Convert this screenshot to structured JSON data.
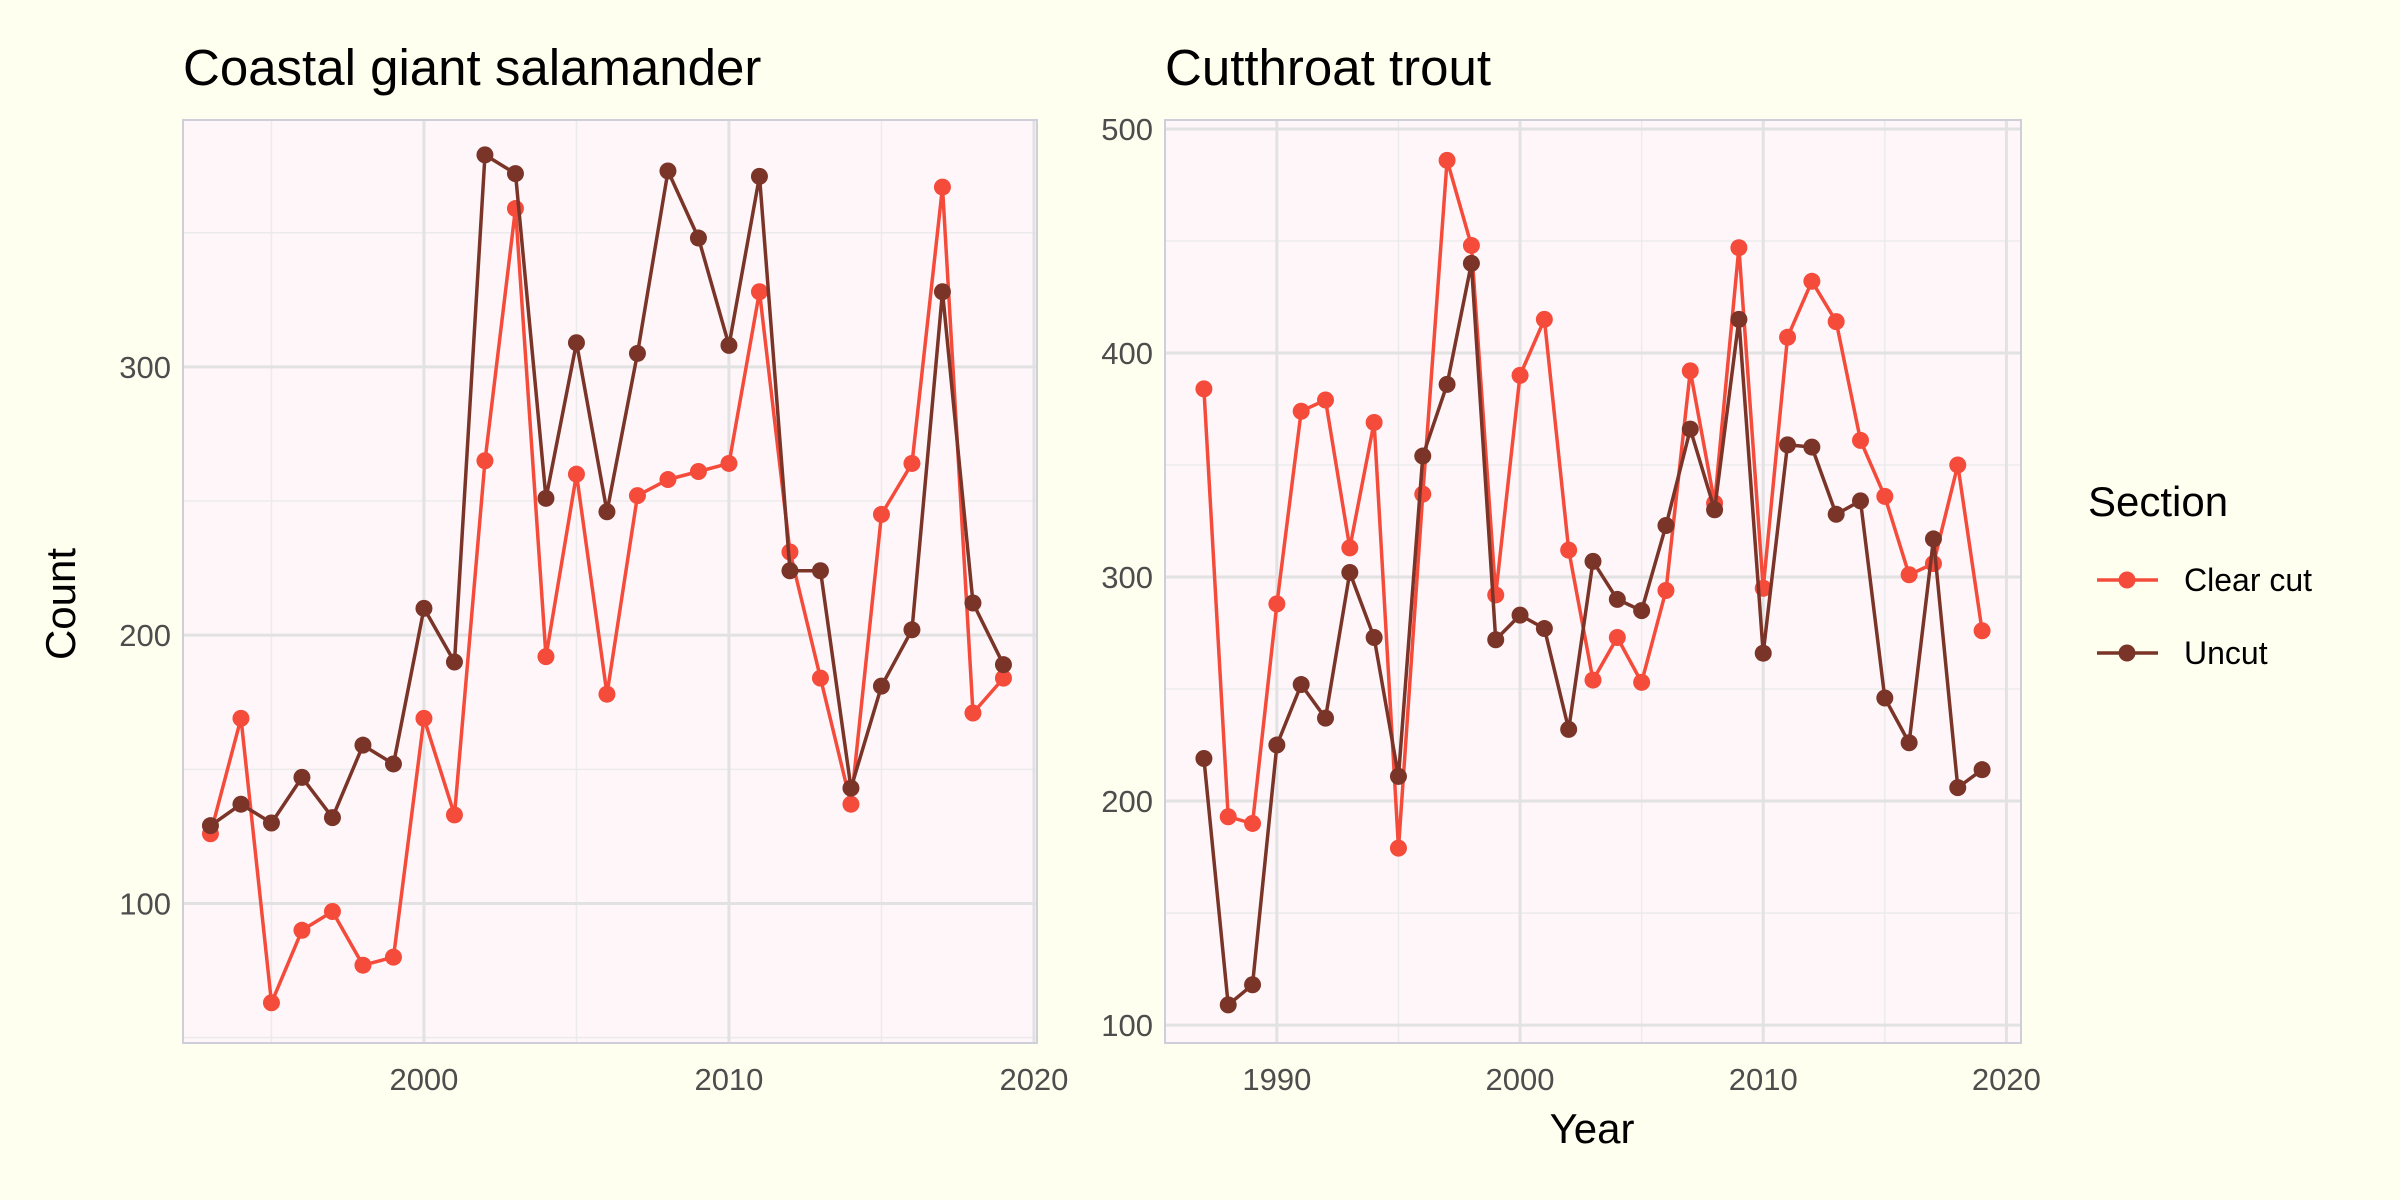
{
  "chart_data": [
    {
      "type": "line",
      "title": "Coastal giant salamander",
      "ylabel": "Count",
      "xlim": [
        1992.1,
        2020.1
      ],
      "ylim": [
        48,
        392
      ],
      "xticks": [
        2000,
        2010,
        2020
      ],
      "yticks": [
        100,
        200,
        300
      ],
      "x": [
        1993,
        1994,
        1995,
        1996,
        1997,
        1998,
        1999,
        2000,
        2001,
        2002,
        2003,
        2004,
        2005,
        2006,
        2007,
        2008,
        2009,
        2010,
        2011,
        2012,
        2013,
        2014,
        2015,
        2016,
        2017,
        2018,
        2019
      ],
      "series": [
        {
          "name": "Clear cut",
          "color": "#f44b3b",
          "values": [
            126,
            169,
            63,
            90,
            97,
            77,
            80,
            169,
            133,
            265,
            359,
            192,
            260,
            178,
            252,
            258,
            261,
            264,
            328,
            231,
            184,
            137,
            245,
            264,
            367,
            171,
            184
          ]
        },
        {
          "name": "Uncut",
          "color": "#7a3428",
          "values": [
            129,
            137,
            130,
            147,
            132,
            159,
            152,
            210,
            190,
            379,
            372,
            251,
            309,
            246,
            305,
            373,
            348,
            308,
            371,
            224,
            224,
            143,
            181,
            202,
            328,
            212,
            189
          ]
        }
      ]
    },
    {
      "type": "line",
      "title": "Cutthroat trout",
      "xlabel": "Year",
      "xlim": [
        1985.4,
        2020.6
      ],
      "ylim": [
        92,
        504
      ],
      "xticks": [
        1990,
        2000,
        2010,
        2020
      ],
      "yticks": [
        100,
        200,
        300,
        400,
        500
      ],
      "x": [
        1987,
        1988,
        1989,
        1990,
        1991,
        1992,
        1993,
        1994,
        1995,
        1996,
        1997,
        1998,
        1999,
        2000,
        2001,
        2002,
        2003,
        2004,
        2005,
        2006,
        2007,
        2008,
        2009,
        2010,
        2011,
        2012,
        2013,
        2014,
        2015,
        2016,
        2017,
        2018,
        2019
      ],
      "series": [
        {
          "name": "Clear cut",
          "color": "#f44b3b",
          "values": [
            384,
            193,
            190,
            288,
            374,
            379,
            313,
            369,
            179,
            337,
            486,
            448,
            292,
            390,
            415,
            312,
            254,
            273,
            253,
            294,
            392,
            333,
            447,
            295,
            407,
            432,
            414,
            361,
            336,
            301,
            306,
            350,
            276
          ]
        },
        {
          "name": "Uncut",
          "color": "#7a3428",
          "values": [
            219,
            109,
            118,
            225,
            252,
            237,
            302,
            273,
            211,
            354,
            386,
            440,
            272,
            283,
            277,
            232,
            307,
            290,
            285,
            323,
            366,
            330,
            415,
            266,
            359,
            358,
            328,
            334,
            246,
            226,
            317,
            206,
            214
          ]
        }
      ]
    }
  ],
  "legend": {
    "title": "Section",
    "placement": "right",
    "items": [
      {
        "label": "Clear cut",
        "color": "#f44b3b"
      },
      {
        "label": "Uncut",
        "color": "#7a3428"
      }
    ]
  }
}
